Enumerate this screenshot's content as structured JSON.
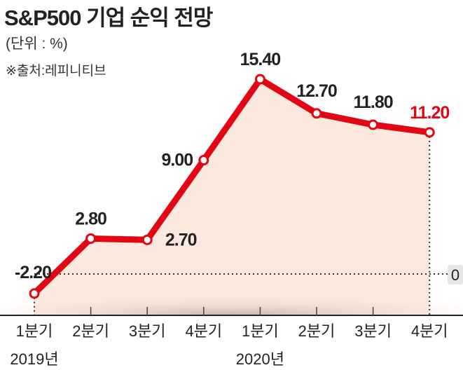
{
  "chart_data": {
    "type": "line",
    "title": "S&P500 기업 순익 전망",
    "unit_label": "(단위 : %)",
    "source": "※출처:레피니티브",
    "categories": [
      "1분기",
      "2분기",
      "3분기",
      "4분기",
      "1분기",
      "2분기",
      "3분기",
      "4분기"
    ],
    "year_labels": [
      {
        "index": 0,
        "label": "2019년"
      },
      {
        "index": 4,
        "label": "2020년"
      }
    ],
    "values": [
      -2.2,
      2.8,
      2.7,
      9.0,
      15.4,
      12.7,
      11.8,
      11.2
    ],
    "data_labels": [
      "-2.20",
      "2.80",
      "2.70",
      "9.00",
      "15.40",
      "12.70",
      "11.80",
      "11.20"
    ],
    "zero_label": "0",
    "grid": false,
    "colors": {
      "line": "#e30613",
      "area": "#fbe9e0",
      "last_label": "#e30613",
      "text": "#222222"
    }
  }
}
